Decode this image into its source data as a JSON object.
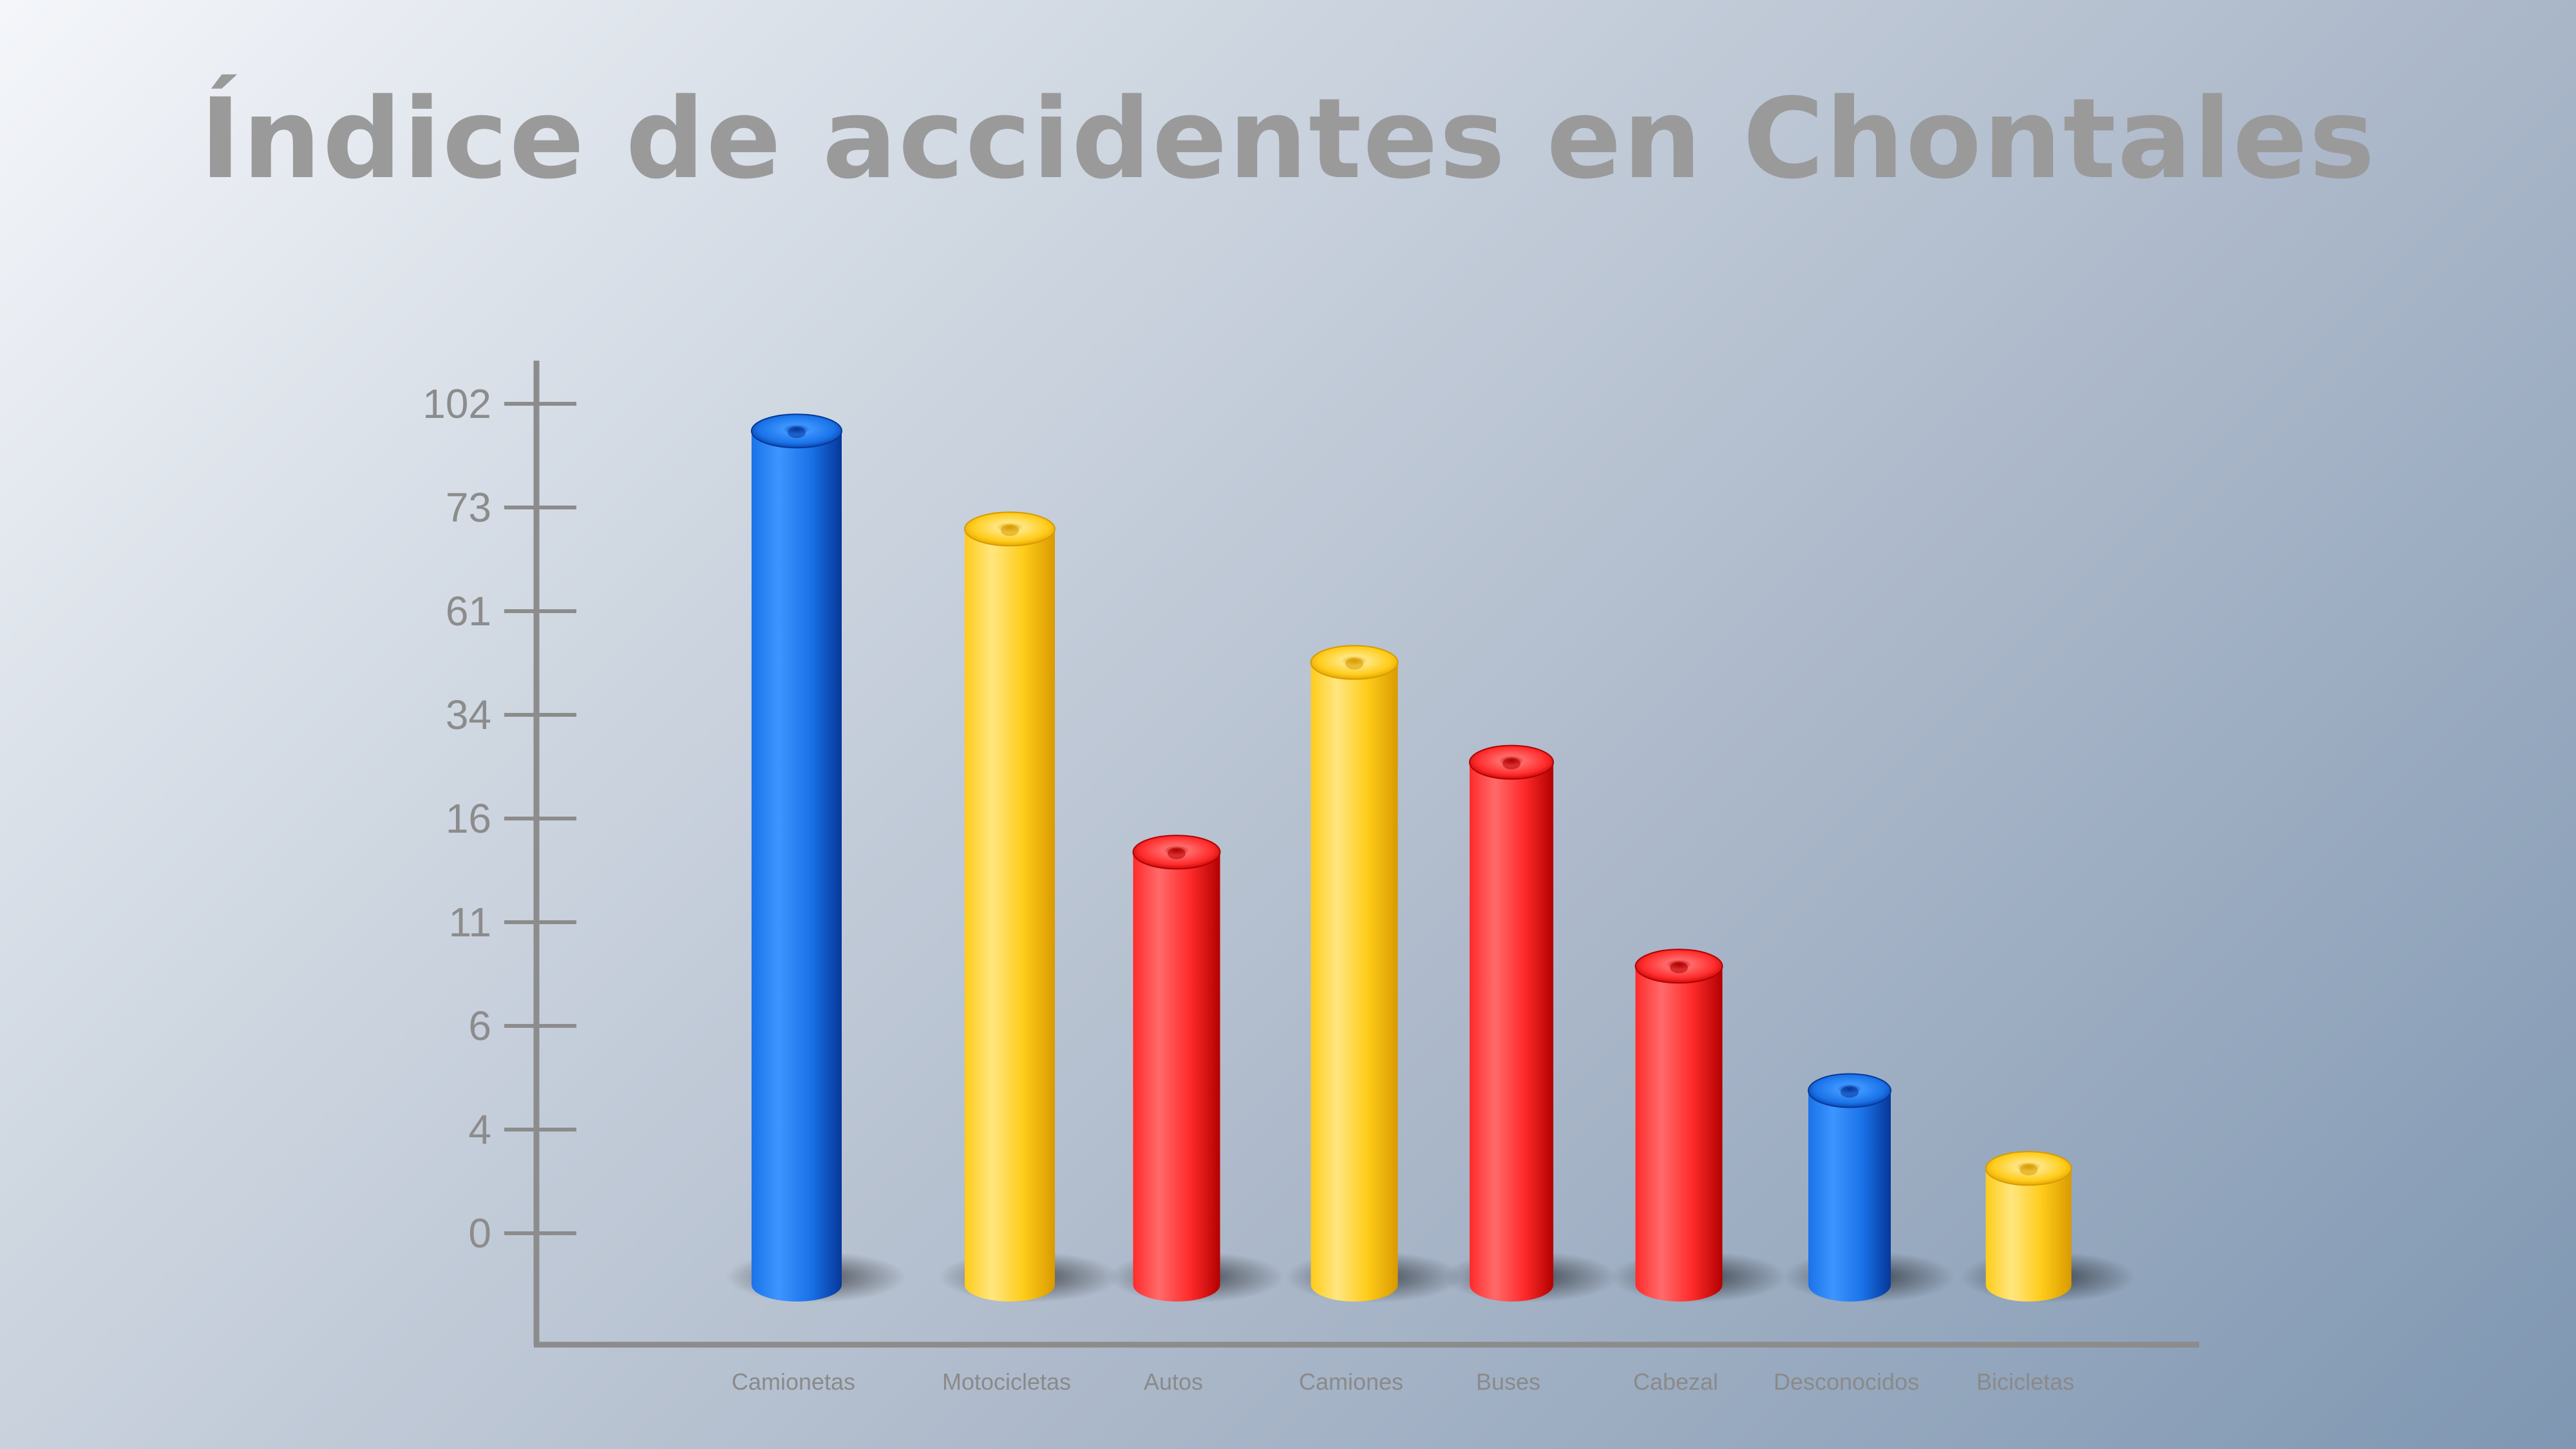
{
  "slide": {
    "title": "Índice de accidentes en Chontales"
  },
  "chart_data": {
    "type": "bar",
    "title": "Índice de accidentes en Chontales",
    "xlabel": "",
    "ylabel": "",
    "y_ticks": [
      0,
      4,
      6,
      11,
      16,
      34,
      61,
      73,
      102
    ],
    "ylim": [
      0,
      102
    ],
    "grid": false,
    "legend": "none",
    "categories": [
      "Camionetas",
      "Motocicletas",
      "Autos",
      "Camiones",
      "Buses",
      "Cabezal",
      "Desconocidos",
      "Bicicletas"
    ],
    "values": [
      98,
      72,
      15,
      51,
      28,
      9.5,
      5,
      3
    ],
    "bar_colors": [
      "blue",
      "yellow",
      "red",
      "yellow",
      "red",
      "red",
      "blue",
      "yellow"
    ],
    "palette": {
      "blue": {
        "dark": "#06379a",
        "mid": "#1a73e8",
        "light": "#3d95ff"
      },
      "yellow": {
        "dark": "#d99a00",
        "mid": "#ffcc1a",
        "light": "#ffe680"
      },
      "red": {
        "dark": "#b30000",
        "mid": "#ff2b2b",
        "light": "#ff6a6a"
      }
    },
    "axis_color": "#8c8c8c",
    "label_color": "#8c8c8c"
  }
}
